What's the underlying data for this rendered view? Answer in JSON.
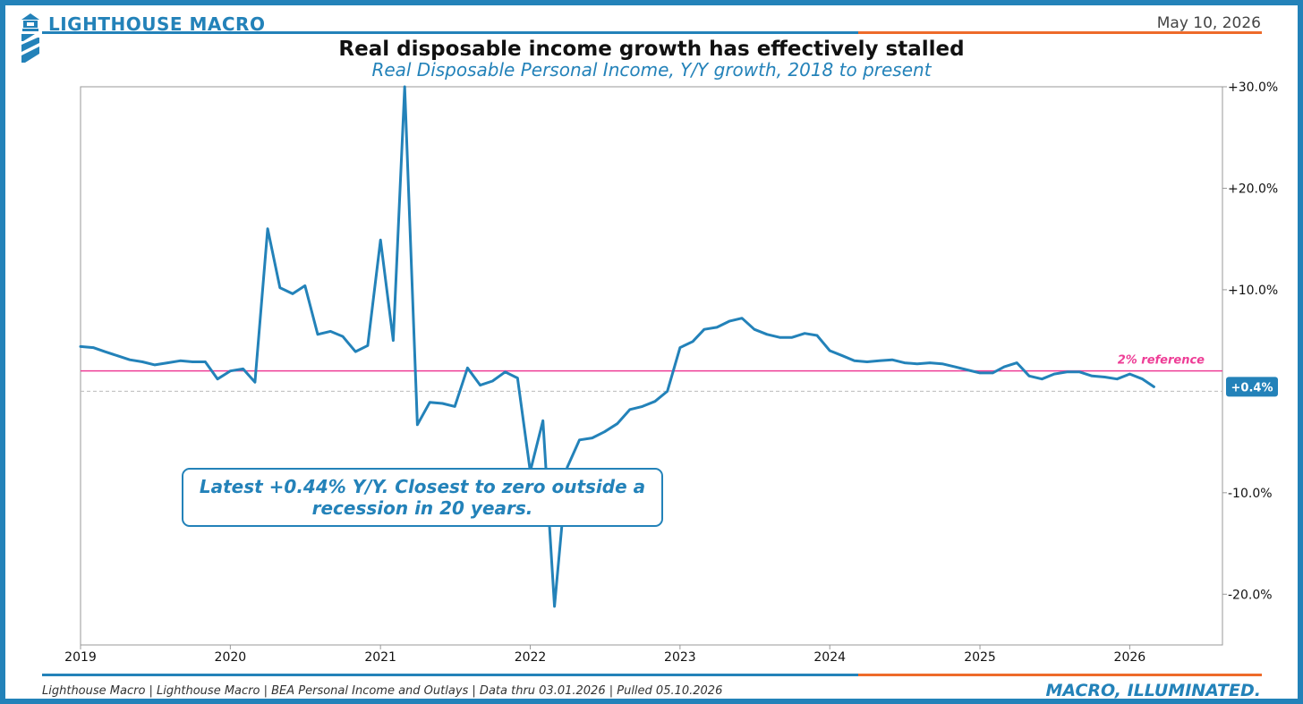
{
  "header": {
    "brand": "LIGHTHOUSE MACRO",
    "date": "May 10, 2026"
  },
  "footer": {
    "source": "Lighthouse Macro | Lighthouse Macro | BEA Personal Income and Outlays | Data thru 03.01.2026 | Pulled 05.10.2026",
    "tagline": "MACRO, ILLUMINATED."
  },
  "colors": {
    "brand_blue": "#2382b9",
    "accent_orange": "#ee6b2a",
    "reference_pink": "#ee3d96"
  },
  "icons": {
    "logo": "lighthouse-icon"
  },
  "chart_data": {
    "type": "line",
    "title": "Real disposable income growth has effectively stalled",
    "subtitle": "Real Disposable Personal Income, Y/Y growth, 2018 to present",
    "xlim": [
      "2019-01-01",
      "2026-08-15"
    ],
    "ylim": [
      -25,
      30
    ],
    "x_ticks": [
      {
        "date": "2019-01-01",
        "label": "2019"
      },
      {
        "date": "2020-01-01",
        "label": "2020"
      },
      {
        "date": "2021-01-01",
        "label": "2021"
      },
      {
        "date": "2022-01-01",
        "label": "2022"
      },
      {
        "date": "2023-01-01",
        "label": "2023"
      },
      {
        "date": "2024-01-01",
        "label": "2024"
      },
      {
        "date": "2025-01-01",
        "label": "2025"
      },
      {
        "date": "2026-01-01",
        "label": "2026"
      }
    ],
    "y_ticks": [
      {
        "value": 30,
        "label": "+30.0%"
      },
      {
        "value": 20,
        "label": "+20.0%"
      },
      {
        "value": 10,
        "label": "+10.0%"
      },
      {
        "value": -10,
        "label": "-10.0%"
      },
      {
        "value": -20,
        "label": "-20.0%"
      }
    ],
    "y_axis_side": "right",
    "grid": false,
    "series": [
      {
        "color": "#2382b9",
        "x": [
          "2019-01",
          "2019-02",
          "2019-03",
          "2019-04",
          "2019-05",
          "2019-06",
          "2019-07",
          "2019-08",
          "2019-09",
          "2019-10",
          "2019-11",
          "2019-12",
          "2020-01",
          "2020-02",
          "2020-03",
          "2020-04",
          "2020-05",
          "2020-06",
          "2020-07",
          "2020-08",
          "2020-09",
          "2020-10",
          "2020-11",
          "2020-12",
          "2021-01",
          "2021-02",
          "2021-03",
          "2021-04",
          "2021-05",
          "2021-06",
          "2021-07",
          "2021-08",
          "2021-09",
          "2021-10",
          "2021-11",
          "2021-12",
          "2022-01",
          "2022-02",
          "2022-03",
          "2022-04",
          "2022-05",
          "2022-06",
          "2022-07",
          "2022-08",
          "2022-09",
          "2022-10",
          "2022-11",
          "2022-12",
          "2023-01",
          "2023-02",
          "2023-03",
          "2023-04",
          "2023-05",
          "2023-06",
          "2023-07",
          "2023-08",
          "2023-09",
          "2023-10",
          "2023-11",
          "2023-12",
          "2024-01",
          "2024-02",
          "2024-03",
          "2024-04",
          "2024-05",
          "2024-06",
          "2024-07",
          "2024-08",
          "2024-09",
          "2024-10",
          "2024-11",
          "2024-12",
          "2025-01",
          "2025-02",
          "2025-03",
          "2025-04",
          "2025-05",
          "2025-06",
          "2025-07",
          "2025-08",
          "2025-09",
          "2025-10",
          "2025-11",
          "2025-12",
          "2026-01",
          "2026-02",
          "2026-03"
        ],
        "values": [
          4.4,
          4.3,
          3.9,
          3.5,
          3.1,
          2.9,
          2.6,
          2.8,
          3.0,
          2.9,
          2.9,
          1.2,
          2.0,
          2.2,
          0.9,
          16.0,
          10.2,
          9.6,
          10.4,
          5.6,
          5.9,
          5.4,
          3.9,
          4.5,
          14.9,
          5.0,
          30.0,
          -3.3,
          -1.1,
          -1.2,
          -1.5,
          2.3,
          0.6,
          1.0,
          1.9,
          1.3,
          -7.9,
          -2.9,
          -21.2,
          -7.5,
          -4.8,
          -4.6,
          -4.0,
          -3.2,
          -1.8,
          -1.5,
          -1.0,
          0.0,
          4.3,
          4.9,
          6.1,
          6.3,
          6.9,
          7.2,
          6.1,
          5.6,
          5.3,
          5.3,
          5.7,
          5.5,
          4.0,
          3.5,
          3.0,
          2.9,
          3.0,
          3.1,
          2.8,
          2.7,
          2.8,
          2.7,
          2.4,
          2.1,
          1.8,
          1.8,
          2.4,
          2.8,
          1.5,
          1.2,
          1.7,
          1.9,
          1.9,
          1.5,
          1.4,
          1.2,
          1.7,
          1.2,
          0.44
        ]
      }
    ],
    "reference_lines": [
      {
        "value": 2,
        "label": "2% reference",
        "color": "#ee3d96"
      },
      {
        "value": 0,
        "color": "#bbbbbb",
        "style": "dashed"
      }
    ],
    "latest_badge": "+0.4%",
    "annotation": "Latest +0.44% Y/Y. Closest to zero outside a recession in 20 years."
  }
}
